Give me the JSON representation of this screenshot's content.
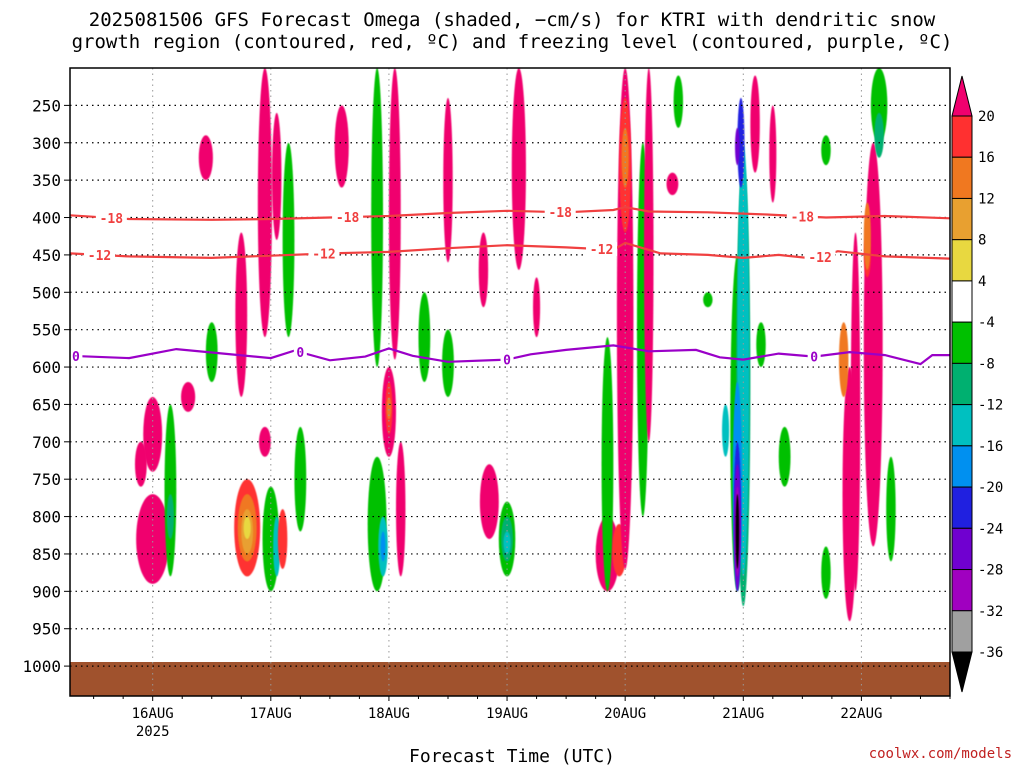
{
  "title_line1": "2025081506 GFS Forecast Omega (shaded, −cm/s) for KTRI with dendritic snow",
  "title_line2": "growth region (contoured, red, ºC) and freezing level (contoured, purple, ºC)",
  "xaxis_title": "Forecast Time (UTC)",
  "credit": "coolwx.com/models",
  "colors": {
    "ground": "#a0522d",
    "dgz": "#f04040",
    "freezing": "#9a00c8"
  },
  "chart_data": {
    "type": "heatmap",
    "title": "2025081506 GFS Forecast Omega (shaded, −cm/s) for KTRI with dendritic snow growth region (contoured, red, ºC) and freezing level (contoured, purple, ºC)",
    "xlabel": "Forecast Time (UTC)",
    "ylabel": "",
    "y_ticks": [
      250,
      300,
      350,
      400,
      450,
      500,
      550,
      600,
      650,
      700,
      750,
      800,
      850,
      900,
      950,
      1000
    ],
    "y_tick_labels": [
      "250",
      "300",
      "350",
      "400",
      "450",
      "500",
      "550",
      "600",
      "650",
      "700",
      "750",
      "800",
      "850",
      "900",
      "950",
      "1000"
    ],
    "x_ticks": [
      {
        "label": "16AUG",
        "sub": "2025"
      },
      {
        "label": "17AUG",
        "sub": ""
      },
      {
        "label": "18AUG",
        "sub": ""
      },
      {
        "label": "19AUG",
        "sub": ""
      },
      {
        "label": "20AUG",
        "sub": ""
      },
      {
        "label": "21AUG",
        "sub": ""
      },
      {
        "label": "22AUG",
        "sub": ""
      }
    ],
    "x_range_days": [
      -0.7,
      6.75
    ],
    "y_range_hpa": [
      200,
      1040
    ],
    "colorbar": {
      "labels": [
        "20",
        "16",
        "12",
        "8",
        "4",
        "-4",
        "-8",
        "-12",
        "-16",
        "-20",
        "-24",
        "-28",
        "-32",
        "-36"
      ],
      "colors": [
        "#f0006e",
        "#ff3030",
        "#f07820",
        "#e8a030",
        "#e8d840",
        "#ffffff",
        "#00c000",
        "#00b070",
        "#00c0c0",
        "#0090f0",
        "#2020e0",
        "#7000d0",
        "#a000c0",
        "#a0a0a0",
        "#000000"
      ]
    },
    "contours": [
      {
        "name": "-18",
        "color": "#f04040",
        "points": [
          [
            -0.7,
            397
          ],
          [
            -0.2,
            402
          ],
          [
            0.5,
            403
          ],
          [
            1.0,
            402
          ],
          [
            1.5,
            400
          ],
          [
            2.0,
            398
          ],
          [
            2.5,
            394
          ],
          [
            3.0,
            391
          ],
          [
            3.5,
            393
          ],
          [
            3.9,
            390
          ],
          [
            4.0,
            386
          ],
          [
            4.2,
            392
          ],
          [
            4.7,
            393
          ],
          [
            5.2,
            396
          ],
          [
            5.7,
            400
          ],
          [
            6.2,
            398
          ],
          [
            6.75,
            401
          ]
        ],
        "labels": [
          {
            "t": -0.35,
            "text": "-18"
          },
          {
            "t": 1.65,
            "text": "-18"
          },
          {
            "t": 3.45,
            "text": "-18"
          },
          {
            "t": 5.5,
            "text": "-18"
          }
        ]
      },
      {
        "name": "-12",
        "color": "#f04040",
        "points": [
          [
            -0.7,
            448
          ],
          [
            -0.2,
            452
          ],
          [
            0.5,
            454
          ],
          [
            1.0,
            451
          ],
          [
            1.5,
            448
          ],
          [
            2.0,
            446
          ],
          [
            2.5,
            441
          ],
          [
            3.0,
            437
          ],
          [
            3.5,
            440
          ],
          [
            3.9,
            443
          ],
          [
            4.0,
            434
          ],
          [
            4.3,
            448
          ],
          [
            4.7,
            450
          ],
          [
            5.0,
            454
          ],
          [
            5.3,
            450
          ],
          [
            5.6,
            455
          ],
          [
            5.8,
            445
          ],
          [
            6.2,
            452
          ],
          [
            6.75,
            455
          ]
        ],
        "labels": [
          {
            "t": -0.45,
            "text": "-12"
          },
          {
            "t": 1.45,
            "text": "-12"
          },
          {
            "t": 3.8,
            "text": "-12"
          },
          {
            "t": 5.65,
            "text": "-12"
          }
        ]
      },
      {
        "name": "0",
        "color": "#9a00c8",
        "points": [
          [
            -0.7,
            585
          ],
          [
            -0.2,
            588
          ],
          [
            0.2,
            576
          ],
          [
            0.6,
            582
          ],
          [
            1.0,
            588
          ],
          [
            1.2,
            578
          ],
          [
            1.5,
            591
          ],
          [
            1.8,
            586
          ],
          [
            2.0,
            575
          ],
          [
            2.2,
            585
          ],
          [
            2.5,
            593
          ],
          [
            3.0,
            590
          ],
          [
            3.2,
            583
          ],
          [
            3.5,
            577
          ],
          [
            3.9,
            571
          ],
          [
            4.2,
            579
          ],
          [
            4.6,
            577
          ],
          [
            4.8,
            587
          ],
          [
            5.0,
            590
          ],
          [
            5.3,
            582
          ],
          [
            5.6,
            586
          ],
          [
            5.9,
            580
          ],
          [
            6.2,
            584
          ],
          [
            6.5,
            596
          ],
          [
            6.6,
            584
          ],
          [
            6.75,
            584
          ]
        ],
        "labels": [
          {
            "t": -0.65,
            "text": "0"
          },
          {
            "t": 1.25,
            "text": "0"
          },
          {
            "t": 3.0,
            "text": "0"
          },
          {
            "t": 5.6,
            "text": "0"
          }
        ]
      }
    ],
    "omega_cells": [
      [
        0.0,
        780,
        870,
        0.1,
        1
      ],
      [
        0.0,
        800,
        860,
        0.06,
        2
      ],
      [
        0.0,
        815,
        850,
        0.03,
        3
      ],
      [
        0.0,
        770,
        890,
        0.14,
        0
      ],
      [
        -0.1,
        700,
        760,
        0.05,
        0
      ],
      [
        0.15,
        650,
        880,
        0.05,
        6
      ],
      [
        0.15,
        770,
        830,
        0.03,
        7
      ],
      [
        0.0,
        640,
        740,
        0.08,
        0
      ],
      [
        0.3,
        620,
        660,
        0.06,
        0
      ],
      [
        0.5,
        540,
        620,
        0.05,
        6
      ],
      [
        0.8,
        750,
        880,
        0.11,
        1
      ],
      [
        0.8,
        770,
        860,
        0.08,
        2
      ],
      [
        0.8,
        790,
        850,
        0.05,
        3
      ],
      [
        0.8,
        800,
        830,
        0.03,
        4
      ],
      [
        0.95,
        680,
        720,
        0.05,
        0
      ],
      [
        1.0,
        760,
        900,
        0.07,
        6
      ],
      [
        1.05,
        800,
        880,
        0.03,
        8
      ],
      [
        0.95,
        200,
        560,
        0.06,
        0
      ],
      [
        1.05,
        260,
        430,
        0.04,
        0
      ],
      [
        1.15,
        300,
        560,
        0.05,
        6
      ],
      [
        0.75,
        420,
        640,
        0.05,
        0
      ],
      [
        0.45,
        290,
        350,
        0.06,
        0
      ],
      [
        1.1,
        790,
        870,
        0.04,
        1
      ],
      [
        1.25,
        680,
        820,
        0.05,
        6
      ],
      [
        2.0,
        600,
        720,
        0.06,
        0
      ],
      [
        2.0,
        620,
        690,
        0.03,
        1
      ],
      [
        2.0,
        640,
        670,
        0.02,
        2
      ],
      [
        1.9,
        720,
        900,
        0.08,
        6
      ],
      [
        1.95,
        800,
        880,
        0.04,
        8
      ],
      [
        1.95,
        820,
        860,
        0.02,
        9
      ],
      [
        2.1,
        700,
        880,
        0.04,
        0
      ],
      [
        1.9,
        200,
        600,
        0.05,
        6
      ],
      [
        2.05,
        200,
        590,
        0.05,
        0
      ],
      [
        2.3,
        500,
        620,
        0.05,
        6
      ],
      [
        1.6,
        250,
        360,
        0.06,
        0
      ],
      [
        2.5,
        240,
        460,
        0.04,
        0
      ],
      [
        2.85,
        730,
        830,
        0.08,
        0
      ],
      [
        3.0,
        780,
        880,
        0.07,
        6
      ],
      [
        3.0,
        800,
        860,
        0.05,
        7
      ],
      [
        3.0,
        820,
        850,
        0.03,
        8
      ],
      [
        2.5,
        550,
        640,
        0.05,
        6
      ],
      [
        3.1,
        200,
        470,
        0.06,
        0
      ],
      [
        2.8,
        420,
        520,
        0.04,
        0
      ],
      [
        3.25,
        480,
        560,
        0.03,
        0
      ],
      [
        3.85,
        800,
        900,
        0.1,
        0
      ],
      [
        3.95,
        810,
        880,
        0.06,
        1
      ],
      [
        3.85,
        680,
        720,
        0.04,
        9
      ],
      [
        3.85,
        560,
        900,
        0.05,
        6
      ],
      [
        4.0,
        200,
        870,
        0.07,
        0
      ],
      [
        4.0,
        240,
        420,
        0.05,
        1
      ],
      [
        4.0,
        280,
        360,
        0.03,
        2
      ],
      [
        4.15,
        300,
        800,
        0.05,
        6
      ],
      [
        4.2,
        200,
        700,
        0.04,
        0
      ],
      [
        4.4,
        340,
        370,
        0.05,
        0
      ],
      [
        4.45,
        210,
        280,
        0.04,
        6
      ],
      [
        4.95,
        450,
        900,
        0.06,
        6
      ],
      [
        5.0,
        320,
        920,
        0.06,
        7
      ],
      [
        5.0,
        300,
        880,
        0.05,
        8
      ],
      [
        4.98,
        240,
        360,
        0.03,
        10
      ],
      [
        4.95,
        280,
        330,
        0.02,
        11
      ],
      [
        4.95,
        620,
        900,
        0.04,
        9
      ],
      [
        4.95,
        700,
        880,
        0.03,
        10
      ],
      [
        4.95,
        730,
        900,
        0.03,
        11
      ],
      [
        4.95,
        760,
        880,
        0.02,
        12
      ],
      [
        4.95,
        770,
        870,
        0.015,
        14
      ],
      [
        4.85,
        650,
        720,
        0.03,
        8
      ],
      [
        4.7,
        500,
        520,
        0.04,
        6
      ],
      [
        5.15,
        540,
        600,
        0.04,
        6
      ],
      [
        5.35,
        680,
        760,
        0.05,
        6
      ],
      [
        5.1,
        210,
        340,
        0.04,
        0
      ],
      [
        5.25,
        250,
        380,
        0.03,
        0
      ],
      [
        5.9,
        600,
        940,
        0.06,
        0
      ],
      [
        5.85,
        540,
        640,
        0.04,
        2
      ],
      [
        5.95,
        420,
        900,
        0.04,
        0
      ],
      [
        6.1,
        300,
        840,
        0.08,
        0
      ],
      [
        6.05,
        420,
        480,
        0.03,
        1
      ],
      [
        6.05,
        380,
        470,
        0.03,
        2
      ],
      [
        6.15,
        200,
        300,
        0.07,
        6
      ],
      [
        6.15,
        260,
        320,
        0.04,
        7
      ],
      [
        5.7,
        290,
        330,
        0.04,
        6
      ],
      [
        6.25,
        720,
        860,
        0.04,
        6
      ],
      [
        5.7,
        840,
        910,
        0.04,
        6
      ]
    ]
  }
}
